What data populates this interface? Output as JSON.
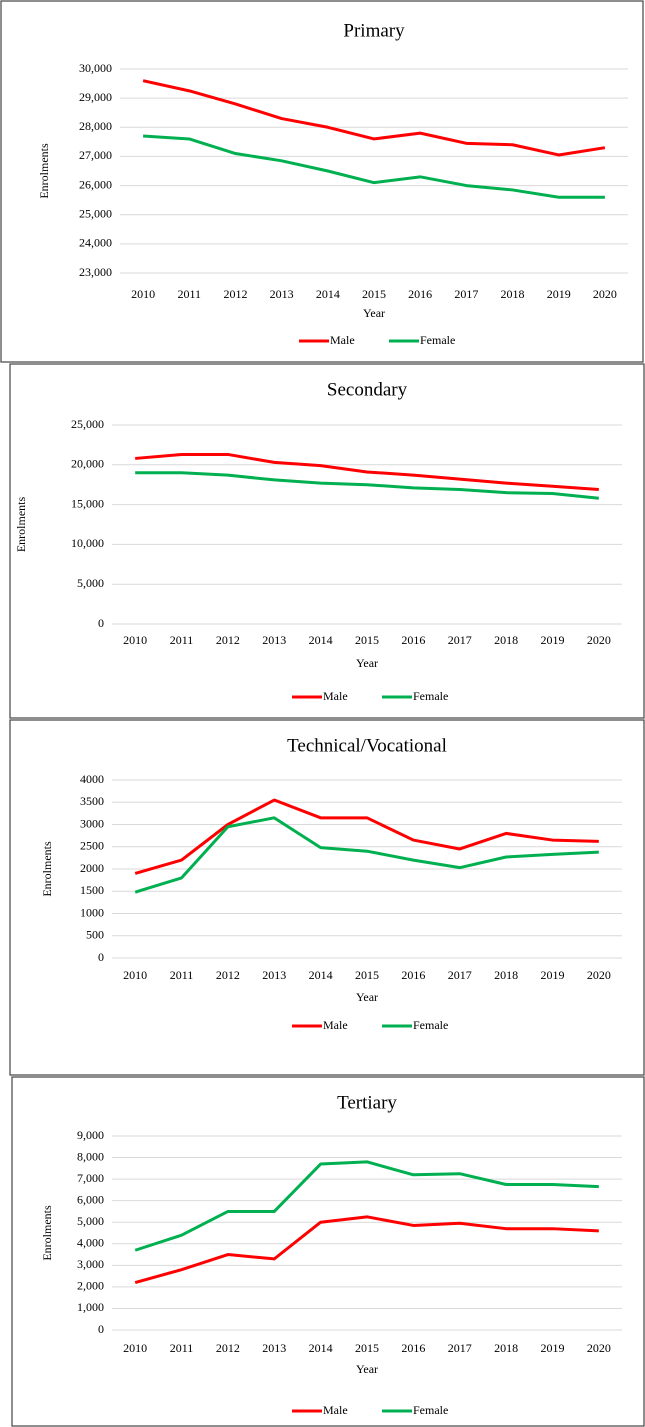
{
  "chart_data": [
    {
      "type": "line",
      "title": "Primary",
      "x_label": "Year",
      "y_label": "Enrolments",
      "categories": [
        "2010",
        "2011",
        "2012",
        "2013",
        "2014",
        "2015",
        "2016",
        "2017",
        "2018",
        "2019",
        "2020"
      ],
      "series": [
        {
          "name": "Male",
          "color": "#ff0000",
          "values": [
            29600,
            29250,
            28800,
            28300,
            28000,
            27600,
            27800,
            27450,
            27400,
            27050,
            27300
          ]
        },
        {
          "name": "Female",
          "color": "#00b050",
          "values": [
            27700,
            27600,
            27100,
            26850,
            26500,
            26100,
            26300,
            26000,
            25850,
            25600,
            25600
          ]
        }
      ],
      "ylim": [
        23000,
        30000
      ],
      "yticks": [
        {
          "value": 23000,
          "label": "23,000"
        },
        {
          "value": 24000,
          "label": "24,000"
        },
        {
          "value": 25000,
          "label": "25,000"
        },
        {
          "value": 26000,
          "label": "26,000"
        },
        {
          "value": 27000,
          "label": "27,000"
        },
        {
          "value": 28000,
          "label": "28,000"
        },
        {
          "value": 29000,
          "label": "29,000"
        },
        {
          "value": 30000,
          "label": "30,000"
        }
      ],
      "grid": true,
      "legend": "bottom"
    },
    {
      "type": "line",
      "title": "Secondary",
      "x_label": "Year",
      "y_label": "Enrolments",
      "categories": [
        "2010",
        "2011",
        "2012",
        "2013",
        "2014",
        "2015",
        "2016",
        "2017",
        "2018",
        "2019",
        "2020"
      ],
      "series": [
        {
          "name": "Male",
          "color": "#ff0000",
          "values": [
            20800,
            21300,
            21300,
            20300,
            19900,
            19100,
            18700,
            18200,
            17700,
            17300,
            16900
          ]
        },
        {
          "name": "Female",
          "color": "#00b050",
          "values": [
            19000,
            19000,
            18700,
            18100,
            17700,
            17500,
            17100,
            16900,
            16500,
            16400,
            15800
          ]
        }
      ],
      "ylim": [
        0,
        25000
      ],
      "yticks": [
        0,
        {
          "value": 5000,
          "label": "5,000"
        },
        {
          "value": 10000,
          "label": "10,000"
        },
        {
          "value": 15000,
          "label": "15,000"
        },
        {
          "value": 20000,
          "label": "20,000"
        },
        {
          "value": 25000,
          "label": "25,000"
        }
      ],
      "grid": true,
      "legend": "bottom"
    },
    {
      "type": "line",
      "title": "Technical/Vocational",
      "x_label": "Year",
      "y_label": "Enrolments",
      "categories": [
        "2010",
        "2011",
        "2012",
        "2013",
        "2014",
        "2015",
        "2016",
        "2017",
        "2018",
        "2019",
        "2020"
      ],
      "series": [
        {
          "name": "Male",
          "color": "#ff0000",
          "values": [
            1900,
            2200,
            3000,
            3550,
            3150,
            3150,
            2650,
            2450,
            2800,
            2650,
            2620
          ]
        },
        {
          "name": "Female",
          "color": "#00b050",
          "values": [
            1480,
            1800,
            2950,
            3150,
            2480,
            2400,
            2200,
            2030,
            2270,
            2330,
            2380
          ]
        }
      ],
      "ylim": [
        0,
        4000
      ],
      "yticks": [
        0,
        500,
        1000,
        1500,
        2000,
        2500,
        3000,
        3500,
        4000
      ],
      "grid": true,
      "legend": "bottom"
    },
    {
      "type": "line",
      "title": "Tertiary",
      "x_label": "Year",
      "y_label": "Enrolments",
      "categories": [
        "2010",
        "2011",
        "2012",
        "2013",
        "2014",
        "2015",
        "2016",
        "2017",
        "2018",
        "2019",
        "2020"
      ],
      "series": [
        {
          "name": "Male",
          "color": "#ff0000",
          "values": [
            2200,
            2800,
            3500,
            3300,
            5000,
            5250,
            4850,
            4950,
            4700,
            4700,
            4600
          ]
        },
        {
          "name": "Female",
          "color": "#00b050",
          "values": [
            3700,
            4400,
            5500,
            5500,
            7700,
            7800,
            7200,
            7250,
            6750,
            6750,
            6650
          ]
        }
      ],
      "ylim": [
        0,
        9000
      ],
      "yticks": [
        0,
        {
          "value": 1000,
          "label": "1,000"
        },
        {
          "value": 2000,
          "label": "2,000"
        },
        {
          "value": 3000,
          "label": "3,000"
        },
        {
          "value": 4000,
          "label": "4,000"
        },
        {
          "value": 5000,
          "label": "5,000"
        },
        {
          "value": 6000,
          "label": "6,000"
        },
        {
          "value": 7000,
          "label": "7,000"
        },
        {
          "value": 8000,
          "label": "8,000"
        },
        {
          "value": 9000,
          "label": "9,000"
        }
      ],
      "grid": true,
      "legend": "bottom"
    }
  ]
}
